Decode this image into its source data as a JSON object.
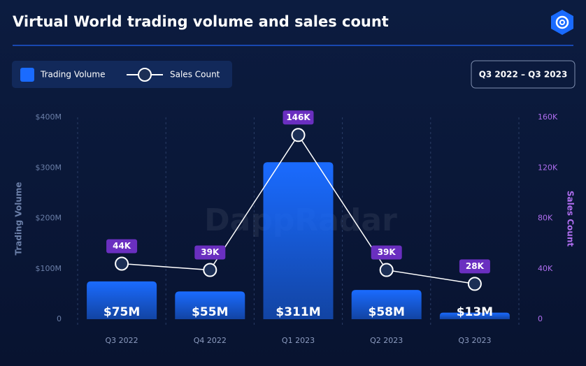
{
  "chart_data": {
    "type": "bar_line",
    "title": "Virtual World trading volume and sales count",
    "date_range": "Q3 2022 – Q3 2023",
    "watermark": "DappRadar",
    "y_label": "Trading Volume",
    "y2_label": "Sales Count",
    "categories": [
      "Q3 2022",
      "Q4 2022",
      "Q1 2023",
      "Q2 2023",
      "Q3 2023"
    ],
    "series": [
      {
        "name": "Trading Volume",
        "type": "bar",
        "color": "#1a6bff",
        "values": [
          75,
          55,
          311,
          58,
          13
        ],
        "value_labels": [
          "$75M",
          "$55M",
          "$311M",
          "$58M",
          "$13M"
        ]
      },
      {
        "name": "Sales Count",
        "type": "line",
        "axis": "y2",
        "color": "#ffffff",
        "label_color": "#6a2fc0",
        "values": [
          44000,
          39000,
          146000,
          39000,
          28000
        ],
        "value_labels": [
          "44K",
          "39K",
          "146K",
          "39K",
          "28K"
        ]
      }
    ],
    "ylim": [
      0,
      400
    ],
    "yticks": [
      0,
      {
        "value": 100,
        "label": "$100M"
      },
      {
        "value": 200,
        "label": "$200M"
      },
      {
        "value": 300,
        "label": "$300M"
      },
      {
        "value": 400,
        "label": "$400M"
      }
    ],
    "y2lim": [
      0,
      160000
    ],
    "y2ticks": [
      0,
      {
        "value": 40000,
        "label": "40K"
      },
      {
        "value": 80000,
        "label": "80K"
      },
      {
        "value": 120000,
        "label": "120K"
      },
      {
        "value": 160000,
        "label": "160K"
      }
    ]
  }
}
